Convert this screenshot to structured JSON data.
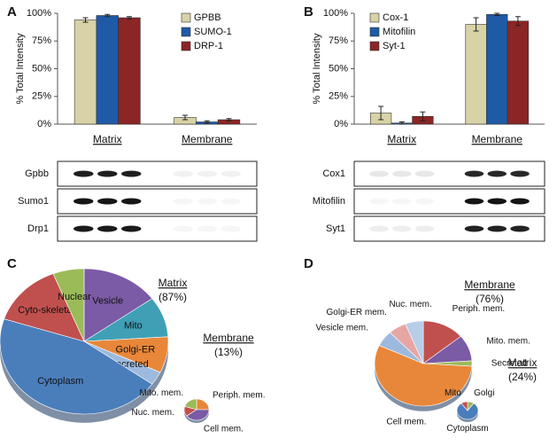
{
  "chart_data": [
    {
      "type": "bar",
      "label": "A",
      "ylabel": "% Total Intensity",
      "categories": [
        "Matrix",
        "Membrane"
      ],
      "series": [
        {
          "name": "GPBB",
          "color": "#d8d2a6",
          "values": [
            94,
            6
          ],
          "errors": [
            2,
            2
          ]
        },
        {
          "name": "SUMO-1",
          "color": "#1f5aa6",
          "values": [
            98,
            2
          ],
          "errors": [
            1,
            1
          ]
        },
        {
          "name": "DRP-1",
          "color": "#8c2525",
          "values": [
            96,
            4
          ],
          "errors": [
            1,
            1
          ]
        }
      ],
      "ylim": [
        0,
        100
      ],
      "yticks": [
        {
          "value": 0,
          "label": "0%"
        },
        {
          "value": 25,
          "label": "25%"
        },
        {
          "value": 50,
          "label": "50%"
        },
        {
          "value": 75,
          "label": "75%"
        },
        {
          "value": 100,
          "label": "100%"
        }
      ],
      "blots": [
        "Gpbb",
        "Sumo1",
        "Drp1"
      ]
    },
    {
      "type": "bar",
      "label": "B",
      "ylabel": "% Total Intensity",
      "categories": [
        "Matrix",
        "Membrane"
      ],
      "series": [
        {
          "name": "Cox-1",
          "color": "#d8d2a6",
          "values": [
            10,
            90
          ],
          "errors": [
            6,
            6
          ]
        },
        {
          "name": "Mitofilin",
          "color": "#1f5aa6",
          "values": [
            1,
            99
          ],
          "errors": [
            1,
            1
          ]
        },
        {
          "name": "Syt-1",
          "color": "#8c2525",
          "values": [
            7,
            93
          ],
          "errors": [
            4,
            4
          ]
        }
      ],
      "ylim": [
        0,
        100
      ],
      "yticks": [
        {
          "value": 0,
          "label": "0%"
        },
        {
          "value": 25,
          "label": "25%"
        },
        {
          "value": 50,
          "label": "50%"
        },
        {
          "value": 75,
          "label": "75%"
        },
        {
          "value": 100,
          "label": "100%"
        }
      ],
      "blots": [
        "Cox1",
        "Mitofilin",
        "Syt1"
      ]
    },
    {
      "type": "pie",
      "label": "C",
      "title": "Matrix",
      "subtitle": "(87%)",
      "categories": [
        "Vesicle",
        "Mito",
        "Golgi-ER",
        "Secreted",
        "Cytoplasm",
        "Cyto-skeletal",
        "Nuclear"
      ],
      "values": [
        15,
        9,
        8,
        3,
        45,
        14,
        6
      ],
      "colors": [
        "#7b5aa6",
        "#3fa0b5",
        "#e8873a",
        "#9db9dd",
        "#4a7ebb",
        "#c0504d",
        "#9bbb59"
      ]
    },
    {
      "type": "pie",
      "title": "Membrane",
      "subtitle": "(13%)",
      "categories": [
        "Periph. mem.",
        "Cell mem.",
        "Nuc. mem.",
        "Mito. mem."
      ],
      "values": [
        25,
        40,
        15,
        20
      ],
      "colors": [
        "#e8873a",
        "#7b5aa6",
        "#c0504d",
        "#9bbb59"
      ]
    },
    {
      "type": "pie",
      "label": "D",
      "title": "Membrane",
      "subtitle": "(76%)",
      "categories": [
        "Periph. mem.",
        "Mito. mem.",
        "Secreted",
        "Cell mem.",
        "Vesicle mem.",
        "Golgi-ER mem.",
        "Nuc. mem."
      ],
      "values": [
        14,
        10,
        2,
        56,
        6,
        6,
        6
      ],
      "colors": [
        "#c0504d",
        "#7b5aa6",
        "#9bbb59",
        "#e8873a",
        "#9db9dd",
        "#e6a6a4",
        "#b7cde8"
      ]
    },
    {
      "type": "pie",
      "title": "Matrix",
      "subtitle": "(24%)",
      "categories": [
        "Golgi",
        "Cytoplasm",
        "Mito"
      ],
      "values": [
        10,
        80,
        10
      ],
      "colors": [
        "#9bbb59",
        "#4a7ebb",
        "#c0504d"
      ]
    }
  ]
}
